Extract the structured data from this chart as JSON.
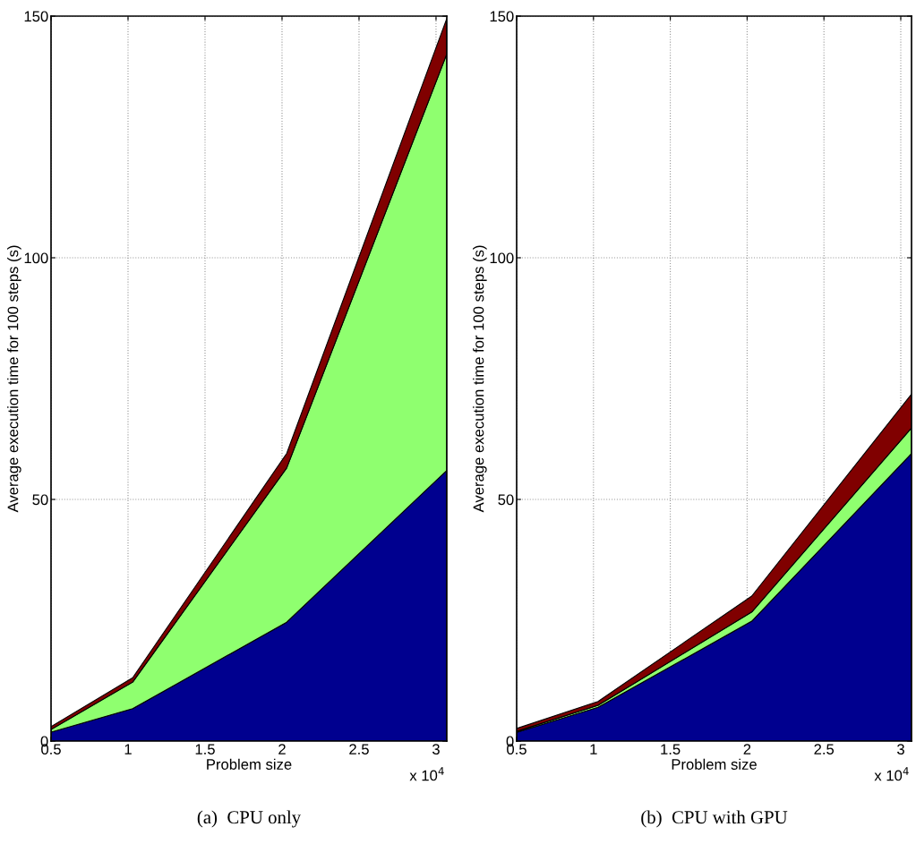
{
  "chart_data": [
    {
      "type": "area",
      "stacked": true,
      "x": [
        0.5,
        1.03,
        2.03,
        3.07
      ],
      "xlim": [
        0.5,
        3.07
      ],
      "xticks": [
        0.5,
        1,
        1.5,
        2,
        2.5,
        3
      ],
      "ylim": [
        0,
        150
      ],
      "yticks": [
        0,
        50,
        100,
        150
      ],
      "grid": true,
      "xlabel": "Problem size",
      "ylabel": "Average execution time for 100 steps (s)",
      "series": [
        {
          "color": "#00008f",
          "values": [
            1.85,
            6.7,
            24.6,
            56
          ]
        },
        {
          "color": "#8fff6f",
          "values": [
            0.55,
            5.5,
            31.9,
            86.2
          ]
        },
        {
          "color": "#800000",
          "values": [
            0.6,
            0.9,
            3,
            7.3
          ]
        }
      ],
      "annotations": [
        "x 10$^{4}$",
        "(a)  CPU only"
      ]
    },
    {
      "type": "area",
      "stacked": true,
      "x": [
        0.5,
        1.03,
        2.03,
        3.07
      ],
      "xlim": [
        0.5,
        3.07
      ],
      "xticks": [
        0.5,
        1,
        1.5,
        2,
        2.5,
        3
      ],
      "ylim": [
        0,
        150
      ],
      "yticks": [
        0,
        50,
        100,
        150
      ],
      "grid": true,
      "xlabel": "Problem size",
      "ylabel": "Average execution time for 100 steps (s)",
      "series": [
        {
          "color": "#00008f",
          "values": [
            1.8,
            7.0,
            24.8,
            59.5
          ]
        },
        {
          "color": "#8fff6f",
          "values": [
            0.2,
            0.4,
            1.9,
            5.3
          ]
        },
        {
          "color": "#800000",
          "values": [
            0.6,
            0.8,
            3.3,
            7.0
          ]
        }
      ],
      "annotations": [
        "x 10$^{4}$",
        "(b)  CPU with GPU"
      ]
    }
  ]
}
